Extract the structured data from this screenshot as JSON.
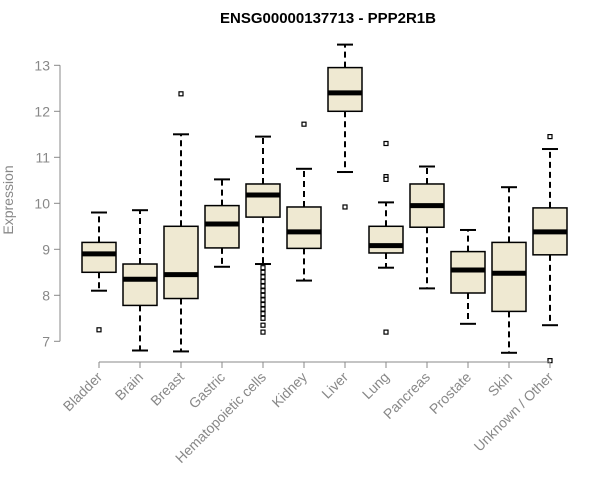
{
  "chart_data": {
    "type": "boxplot",
    "title": "ENSG00000137713 - PPP2R1B",
    "ylabel": "Expression",
    "xlabel": "",
    "ylim": [
      6.55,
      13.55
    ],
    "yticks": [
      7,
      8,
      9,
      10,
      11,
      12,
      13
    ],
    "box_fill": "#efe9d2",
    "box_stroke": "#000000",
    "axis_color": "#888888",
    "categories": [
      "Bladder",
      "Brain",
      "Breast",
      "Gastric",
      "Hematopoietic cells",
      "Kidney",
      "Liver",
      "Lung",
      "Pancreas",
      "Prostate",
      "Skin",
      "Unknown / Other"
    ],
    "series": [
      {
        "category": "Bladder",
        "whisker_low": 8.1,
        "q1": 8.5,
        "median": 8.9,
        "q3": 9.15,
        "whisker_high": 9.8,
        "outliers": [
          7.25
        ]
      },
      {
        "category": "Brain",
        "whisker_low": 6.8,
        "q1": 7.78,
        "median": 8.35,
        "q3": 8.68,
        "whisker_high": 9.85,
        "outliers": []
      },
      {
        "category": "Breast",
        "whisker_low": 6.78,
        "q1": 7.93,
        "median": 8.45,
        "q3": 9.5,
        "whisker_high": 11.5,
        "outliers": [
          12.38
        ]
      },
      {
        "category": "Gastric",
        "whisker_low": 8.62,
        "q1": 9.03,
        "median": 9.55,
        "q3": 9.95,
        "whisker_high": 10.52,
        "outliers": []
      },
      {
        "category": "Hematopoietic cells",
        "whisker_low": 8.68,
        "q1": 9.7,
        "median": 10.18,
        "q3": 10.42,
        "whisker_high": 11.45,
        "outliers": [
          8.6,
          8.5,
          8.4,
          8.3,
          8.2,
          8.1,
          8.0,
          7.9,
          7.8,
          7.7,
          7.6,
          7.5,
          7.35,
          7.2
        ]
      },
      {
        "category": "Kidney",
        "whisker_low": 8.32,
        "q1": 9.02,
        "median": 9.38,
        "q3": 9.92,
        "whisker_high": 10.75,
        "outliers": [
          11.72
        ]
      },
      {
        "category": "Liver",
        "whisker_low": 10.68,
        "q1": 12.0,
        "median": 12.4,
        "q3": 12.95,
        "whisker_high": 13.45,
        "outliers": [
          9.92
        ]
      },
      {
        "category": "Lung",
        "whisker_low": 8.6,
        "q1": 8.92,
        "median": 9.08,
        "q3": 9.5,
        "whisker_high": 10.02,
        "outliers": [
          11.3,
          10.58,
          10.52,
          7.2
        ]
      },
      {
        "category": "Pancreas",
        "whisker_low": 8.15,
        "q1": 9.48,
        "median": 9.95,
        "q3": 10.42,
        "whisker_high": 10.8,
        "outliers": []
      },
      {
        "category": "Prostate",
        "whisker_low": 7.38,
        "q1": 8.05,
        "median": 8.55,
        "q3": 8.95,
        "whisker_high": 9.42,
        "outliers": []
      },
      {
        "category": "Skin",
        "whisker_low": 6.75,
        "q1": 7.65,
        "median": 8.48,
        "q3": 9.15,
        "whisker_high": 10.35,
        "outliers": []
      },
      {
        "category": "Unknown / Other",
        "whisker_low": 7.35,
        "q1": 8.88,
        "median": 9.38,
        "q3": 9.9,
        "whisker_high": 11.18,
        "outliers": [
          11.45,
          6.58
        ]
      }
    ]
  }
}
